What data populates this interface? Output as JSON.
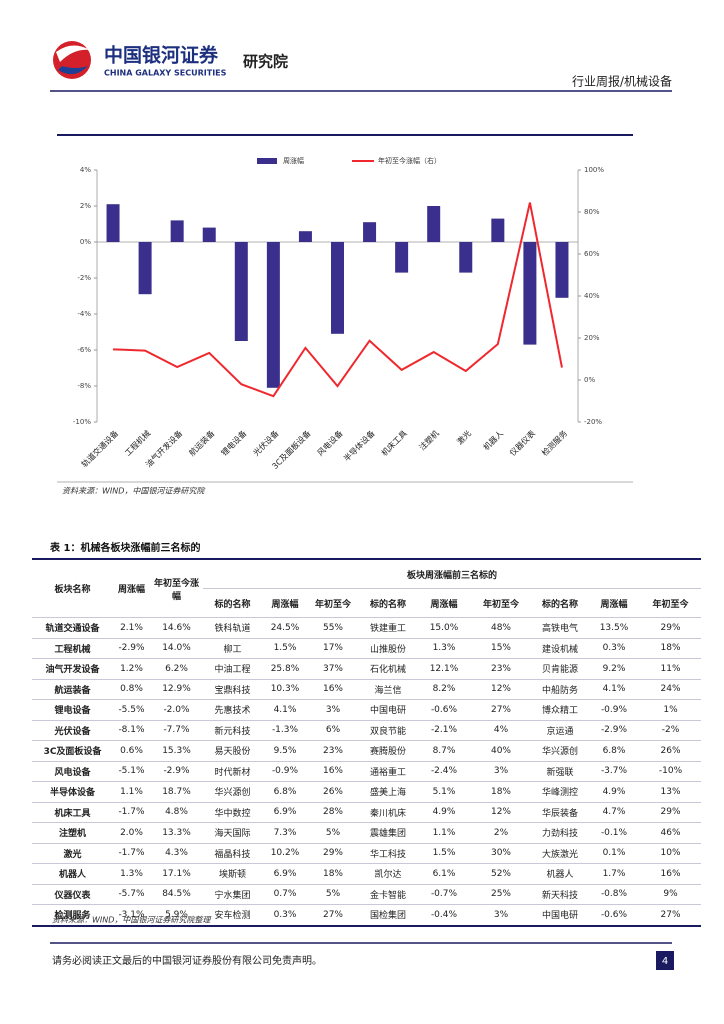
{
  "header": {
    "brand_cn": "中国银河证券",
    "brand_en": "CHINA GALAXY SECURITIES",
    "institute": "研究院",
    "section": "行业周报/机械设备"
  },
  "chart_data": {
    "type": "bar",
    "categories": [
      "轨道交通设备",
      "工程机械",
      "油气开发设备",
      "航运装备",
      "锂电设备",
      "光伏设备",
      "3C及面板设备",
      "风电设备",
      "半导体设备",
      "机床工具",
      "注塑机",
      "激光",
      "机器人",
      "仪器仪表",
      "检测服务"
    ],
    "series": [
      {
        "name": "周涨幅",
        "color": "#3a2f8c",
        "type": "bar",
        "values": [
          2.1,
          -2.9,
          1.2,
          0.8,
          -5.5,
          -8.1,
          0.6,
          -5.1,
          1.1,
          -1.7,
          2.0,
          -1.7,
          1.3,
          -5.7,
          -3.1
        ]
      },
      {
        "name": "年初至今涨幅（右）",
        "color": "#f0282d",
        "type": "line",
        "axis": "y2",
        "values": [
          14.6,
          14.0,
          6.2,
          12.9,
          -2.0,
          -7.7,
          15.3,
          -2.9,
          18.7,
          4.8,
          13.3,
          4.3,
          17.1,
          84.5,
          5.9
        ]
      }
    ],
    "ylim": [
      -10,
      4
    ],
    "yticks": [
      {
        "value": 4,
        "label": "4%"
      },
      {
        "value": 2,
        "label": "2%"
      },
      {
        "value": 0,
        "label": "0%"
      },
      {
        "value": -2,
        "label": "-2%"
      },
      {
        "value": -4,
        "label": "-4%"
      },
      {
        "value": -6,
        "label": "-6%"
      },
      {
        "value": -8,
        "label": "-8%"
      },
      {
        "value": -10,
        "label": "-10%"
      }
    ],
    "y2lim": [
      -20,
      100
    ],
    "y2ticks": [
      {
        "value": 100,
        "label": "100%"
      },
      {
        "value": 80,
        "label": "80%"
      },
      {
        "value": 60,
        "label": "60%"
      },
      {
        "value": 40,
        "label": "40%"
      },
      {
        "value": 20,
        "label": "20%"
      },
      {
        "value": 0,
        "label": "0%"
      },
      {
        "value": -20,
        "label": "-20%"
      }
    ],
    "source": "资料来源：WIND，中国银河证券研究院"
  },
  "table": {
    "title": "表 1：机械各板块涨幅前三名标的",
    "header_top": [
      "板块名称",
      "周涨幅",
      "年初至今涨幅",
      "板块周涨幅前三名标的"
    ],
    "header_sub": [
      "标的名称",
      "周涨幅",
      "年初至今",
      "标的名称",
      "周涨幅",
      "年初至今",
      "标的名称",
      "周涨幅",
      "年初至今"
    ],
    "rows": [
      [
        "轨道交通设备",
        "2.1%",
        "14.6%",
        "铁科轨道",
        "24.5%",
        "55%",
        "铁建重工",
        "15.0%",
        "48%",
        "高铁电气",
        "13.5%",
        "29%"
      ],
      [
        "工程机械",
        "-2.9%",
        "14.0%",
        "柳工",
        "1.5%",
        "17%",
        "山推股份",
        "1.3%",
        "15%",
        "建设机械",
        "0.3%",
        "18%"
      ],
      [
        "油气开发设备",
        "1.2%",
        "6.2%",
        "中油工程",
        "25.8%",
        "37%",
        "石化机械",
        "12.1%",
        "23%",
        "贝肯能源",
        "9.2%",
        "11%"
      ],
      [
        "航运装备",
        "0.8%",
        "12.9%",
        "宝鼎科技",
        "10.3%",
        "16%",
        "海兰信",
        "8.2%",
        "12%",
        "中船防务",
        "4.1%",
        "24%"
      ],
      [
        "锂电设备",
        "-5.5%",
        "-2.0%",
        "先惠技术",
        "4.1%",
        "3%",
        "中国电研",
        "-0.6%",
        "27%",
        "博众精工",
        "-0.9%",
        "1%"
      ],
      [
        "光伏设备",
        "-8.1%",
        "-7.7%",
        "新元科技",
        "-1.3%",
        "6%",
        "双良节能",
        "-2.1%",
        "4%",
        "京运通",
        "-2.9%",
        "-2%"
      ],
      [
        "3C及面板设备",
        "0.6%",
        "15.3%",
        "易天股份",
        "9.5%",
        "23%",
        "赛腾股份",
        "8.7%",
        "40%",
        "华兴源创",
        "6.8%",
        "26%"
      ],
      [
        "风电设备",
        "-5.1%",
        "-2.9%",
        "时代新材",
        "-0.9%",
        "16%",
        "通裕重工",
        "-2.4%",
        "3%",
        "新强联",
        "-3.7%",
        "-10%"
      ],
      [
        "半导体设备",
        "1.1%",
        "18.7%",
        "华兴源创",
        "6.8%",
        "26%",
        "盛美上海",
        "5.1%",
        "18%",
        "华峰测控",
        "4.9%",
        "13%"
      ],
      [
        "机床工具",
        "-1.7%",
        "4.8%",
        "华中数控",
        "6.9%",
        "28%",
        "秦川机床",
        "4.9%",
        "12%",
        "华辰装备",
        "4.7%",
        "29%"
      ],
      [
        "注塑机",
        "2.0%",
        "13.3%",
        "海天国际",
        "7.3%",
        "5%",
        "震雄集团",
        "1.1%",
        "2%",
        "力劲科技",
        "-0.1%",
        "46%"
      ],
      [
        "激光",
        "-1.7%",
        "4.3%",
        "福晶科技",
        "10.2%",
        "29%",
        "华工科技",
        "1.5%",
        "30%",
        "大族激光",
        "0.1%",
        "10%"
      ],
      [
        "机器人",
        "1.3%",
        "17.1%",
        "埃斯顿",
        "6.9%",
        "18%",
        "凯尔达",
        "6.1%",
        "52%",
        "机器人",
        "1.7%",
        "16%"
      ],
      [
        "仪器仪表",
        "-5.7%",
        "84.5%",
        "宁水集团",
        "0.7%",
        "5%",
        "金卡智能",
        "-0.7%",
        "25%",
        "新天科技",
        "-0.8%",
        "9%"
      ],
      [
        "检测服务",
        "-3.1%",
        "5.9%",
        "安车检测",
        "0.3%",
        "27%",
        "国检集团",
        "-0.4%",
        "3%",
        "中国电研",
        "-0.6%",
        "27%"
      ]
    ],
    "source": "资料来源：WIND，中国银河证券研究院整理"
  },
  "footer": {
    "disclaimer": "请务必阅读正文最后的中国银河证券股份有限公司免责声明。",
    "page": "4"
  }
}
